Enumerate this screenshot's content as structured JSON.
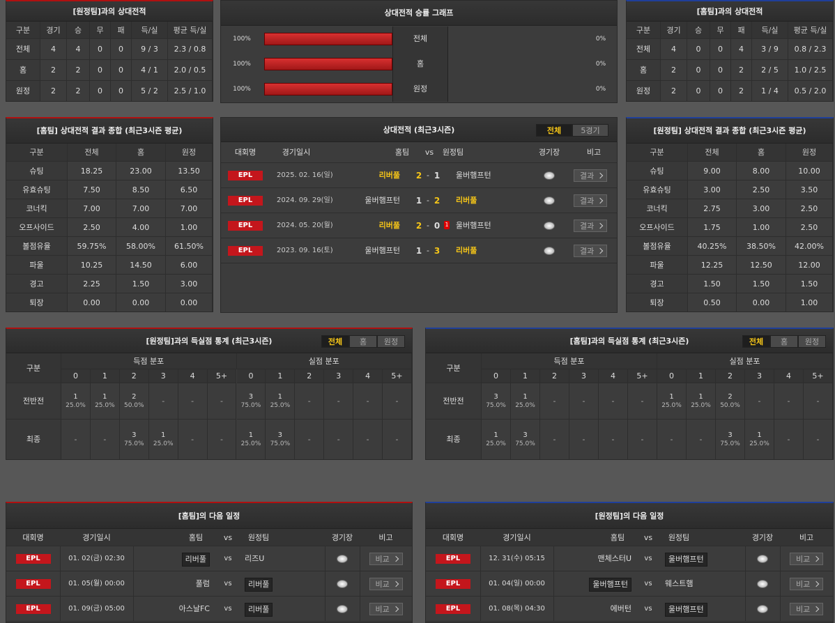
{
  "away_h2h": {
    "title": "[원정팀]과의 상대전적",
    "headers": [
      "구분",
      "경기",
      "승",
      "무",
      "패",
      "득/실",
      "평균 득/실"
    ],
    "rows": [
      [
        "전체",
        "4",
        "4",
        "0",
        "0",
        "9 / 3",
        "2.3 / 0.8"
      ],
      [
        "홈",
        "2",
        "2",
        "0",
        "0",
        "4 / 1",
        "2.0 / 0.5"
      ],
      [
        "원정",
        "2",
        "2",
        "0",
        "0",
        "5 / 2",
        "2.5 / 1.0"
      ]
    ]
  },
  "graph": {
    "title": "상대전적 승률 그래프",
    "rows": [
      {
        "label": "전체",
        "home_rate": {
          "value": 100,
          "label": "100%"
        },
        "away_rate": {
          "value": 0,
          "label": "0%"
        }
      },
      {
        "label": "홈",
        "home_rate": {
          "value": 100,
          "label": "100%"
        },
        "away_rate": {
          "value": 0,
          "label": "0%"
        }
      },
      {
        "label": "원정",
        "home_rate": {
          "value": 100,
          "label": "100%"
        },
        "away_rate": {
          "value": 0,
          "label": "0%"
        }
      }
    ]
  },
  "home_h2h": {
    "title": "[홈팀]과의 상대전적",
    "headers": [
      "구분",
      "경기",
      "승",
      "무",
      "패",
      "득/실",
      "평균 득/실"
    ],
    "rows": [
      [
        "전체",
        "4",
        "0",
        "0",
        "4",
        "3 / 9",
        "0.8 / 2.3"
      ],
      [
        "홈",
        "2",
        "0",
        "0",
        "2",
        "2 / 5",
        "1.0 / 2.5"
      ],
      [
        "원정",
        "2",
        "0",
        "0",
        "2",
        "1 / 4",
        "0.5 / 2.0"
      ]
    ]
  },
  "home_summary": {
    "title": "[홈팀] 상대전적 결과 종합 (최근3시즌 평균)",
    "headers": [
      "구분",
      "전체",
      "홈",
      "원정"
    ],
    "rows": [
      [
        "슈팅",
        "18.25",
        "23.00",
        "13.50"
      ],
      [
        "유효슈팅",
        "7.50",
        "8.50",
        "6.50"
      ],
      [
        "코너킥",
        "7.00",
        "7.00",
        "7.00"
      ],
      [
        "오프사이드",
        "2.50",
        "4.00",
        "1.00"
      ],
      [
        "볼점유율",
        "59.75%",
        "58.00%",
        "61.50%"
      ],
      [
        "파울",
        "10.25",
        "14.50",
        "6.00"
      ],
      [
        "경고",
        "2.25",
        "1.50",
        "3.00"
      ],
      [
        "퇴장",
        "0.00",
        "0.00",
        "0.00"
      ]
    ]
  },
  "recent": {
    "title": "상대전적 (최근3시즌)",
    "tabs": [
      "전체",
      "5경기"
    ],
    "headers": [
      "대회명",
      "경기일시",
      "홈팀",
      "vs",
      "원정팀",
      "경기장",
      "비고"
    ],
    "separator": "-",
    "button": "결과",
    "matches": [
      {
        "league": "EPL",
        "date": "2025. 02. 16(일)",
        "home": "리버풀",
        "home_score": "2",
        "away_score": "1",
        "away": "울버햄프턴",
        "winner": "home"
      },
      {
        "league": "EPL",
        "date": "2024. 09. 29(일)",
        "home": "울버햄프턴",
        "home_score": "1",
        "away_score": "2",
        "away": "리버풀",
        "winner": "away"
      },
      {
        "league": "EPL",
        "date": "2024. 05. 20(월)",
        "home": "리버풀",
        "home_score": "2",
        "away_score": "0",
        "away": "울버햄프턴",
        "winner": "home",
        "away_red_cards": "1"
      },
      {
        "league": "EPL",
        "date": "2023. 09. 16(토)",
        "home": "울버햄프턴",
        "home_score": "1",
        "away_score": "3",
        "away": "리버풀",
        "winner": "away"
      }
    ]
  },
  "away_summary": {
    "title": "[원정팀] 상대전적 결과 종합 (최근3시즌 평균)",
    "headers": [
      "구분",
      "전체",
      "홈",
      "원정"
    ],
    "rows": [
      [
        "슈팅",
        "9.00",
        "8.00",
        "10.00"
      ],
      [
        "유효슈팅",
        "3.00",
        "2.50",
        "3.50"
      ],
      [
        "코너킥",
        "2.75",
        "3.00",
        "2.50"
      ],
      [
        "오프사이드",
        "1.75",
        "1.00",
        "2.50"
      ],
      [
        "볼점유율",
        "40.25%",
        "38.50%",
        "42.00%"
      ],
      [
        "파울",
        "12.25",
        "12.50",
        "12.00"
      ],
      [
        "경고",
        "1.50",
        "1.50",
        "1.50"
      ],
      [
        "퇴장",
        "0.50",
        "0.00",
        "1.00"
      ]
    ]
  },
  "away_goals": {
    "title": "[원정팀]과의 득실점 통계 (최근3시즌)",
    "tabs": [
      "전체",
      "홈",
      "원정"
    ],
    "label": "구분",
    "groups": [
      "득점 분포",
      "실점 분포"
    ],
    "columns": [
      "0",
      "1",
      "2",
      "3",
      "4",
      "5+"
    ],
    "rows": [
      {
        "label": "전반전",
        "cells": [
          [
            "1",
            "25.0%"
          ],
          [
            "1",
            "25.0%"
          ],
          [
            "2",
            "50.0%"
          ],
          "-",
          "-",
          "-",
          [
            "3",
            "75.0%"
          ],
          [
            "1",
            "25.0%"
          ],
          "-",
          "-",
          "-",
          "-"
        ]
      },
      {
        "label": "최종",
        "cells": [
          "-",
          "-",
          [
            "3",
            "75.0%"
          ],
          [
            "1",
            "25.0%"
          ],
          "-",
          "-",
          [
            "1",
            "25.0%"
          ],
          [
            "3",
            "75.0%"
          ],
          "-",
          "-",
          "-",
          "-"
        ]
      }
    ]
  },
  "home_goals": {
    "title": "[홈팀]과의 득실점 통계 (최근3시즌)",
    "tabs": [
      "전체",
      "홈",
      "원정"
    ],
    "label": "구분",
    "groups": [
      "득점 분포",
      "실점 분포"
    ],
    "columns": [
      "0",
      "1",
      "2",
      "3",
      "4",
      "5+"
    ],
    "rows": [
      {
        "label": "전반전",
        "cells": [
          [
            "3",
            "75.0%"
          ],
          [
            "1",
            "25.0%"
          ],
          "-",
          "-",
          "-",
          "-",
          [
            "1",
            "25.0%"
          ],
          [
            "1",
            "25.0%"
          ],
          [
            "2",
            "50.0%"
          ],
          "-",
          "-",
          "-"
        ]
      },
      {
        "label": "최종",
        "cells": [
          [
            "1",
            "25.0%"
          ],
          [
            "3",
            "75.0%"
          ],
          "-",
          "-",
          "-",
          "-",
          "-",
          "-",
          [
            "3",
            "75.0%"
          ],
          [
            "1",
            "25.0%"
          ],
          "-",
          "-"
        ]
      }
    ]
  },
  "home_next": {
    "title": "[홈팀]의 다음 일정",
    "headers": [
      "대회명",
      "경기일시",
      "홈팀",
      "vs",
      "원정팀",
      "경기장",
      "비고"
    ],
    "button": "비교",
    "matches": [
      {
        "league": "EPL",
        "date": "01. 02(금) 02:30",
        "home": "리버풀",
        "away": "리즈U",
        "focus": "home"
      },
      {
        "league": "EPL",
        "date": "01. 05(월) 00:00",
        "home": "풀럼",
        "away": "리버풀",
        "focus": "away"
      },
      {
        "league": "EPL",
        "date": "01. 09(금) 05:00",
        "home": "아스날FC",
        "away": "리버풀",
        "focus": "away"
      }
    ]
  },
  "away_next": {
    "title": "[원정팀]의 다음 일정",
    "headers": [
      "대회명",
      "경기일시",
      "홈팀",
      "vs",
      "원정팀",
      "경기장",
      "비고"
    ],
    "button": "비교",
    "matches": [
      {
        "league": "EPL",
        "date": "12. 31(수) 05:15",
        "home": "맨체스터U",
        "away": "울버햄프턴",
        "focus": "away"
      },
      {
        "league": "EPL",
        "date": "01. 04(일) 00:00",
        "home": "울버햄프턴",
        "away": "웨스트햄",
        "focus": "home"
      },
      {
        "league": "EPL",
        "date": "01. 08(목) 04:30",
        "home": "에버턴",
        "away": "울버햄프턴",
        "focus": "away"
      }
    ]
  }
}
